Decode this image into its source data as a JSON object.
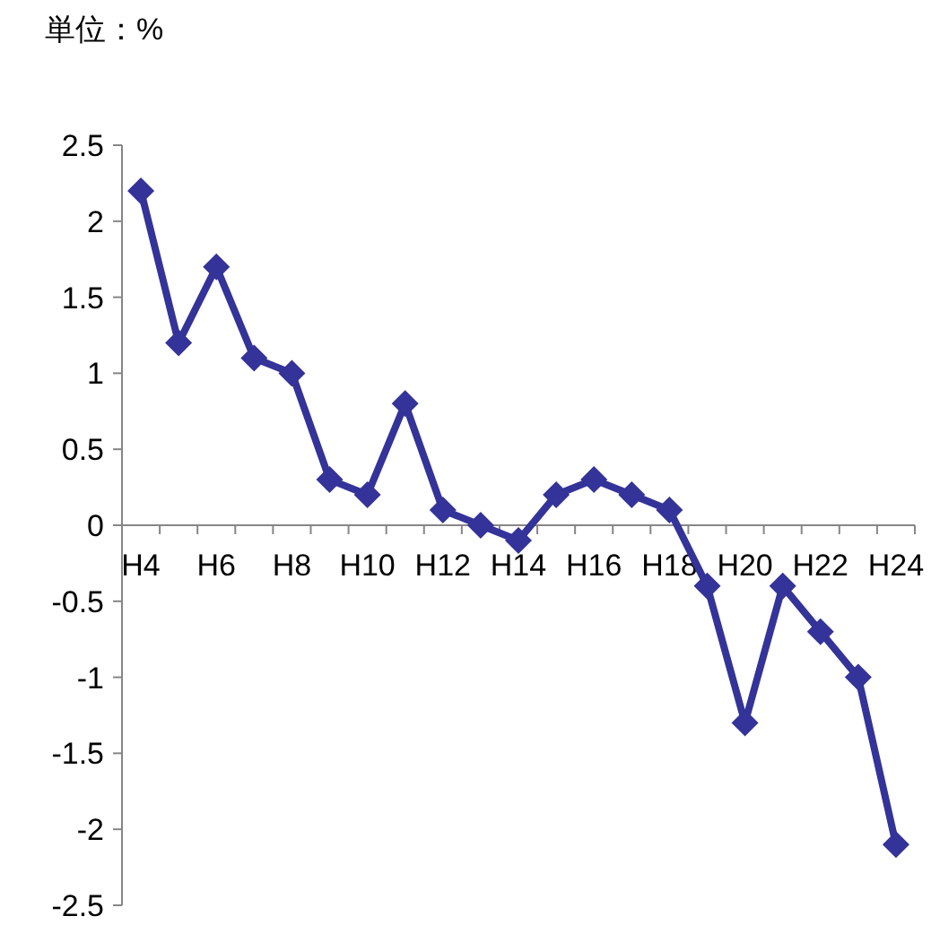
{
  "chart_data": {
    "type": "line",
    "ylabel": "単位：%",
    "categories": [
      "H4",
      null,
      "H6",
      null,
      "H8",
      null,
      "H10",
      null,
      "H12",
      null,
      "H14",
      null,
      "H16",
      null,
      "H18",
      null,
      "H20",
      null,
      "H22",
      null,
      "H24"
    ],
    "series": [
      {
        "color": "#333399",
        "values": [
          2.2,
          1.2,
          1.7,
          1.1,
          1.0,
          0.3,
          0.2,
          0.8,
          0.1,
          0.0,
          -0.1,
          0.2,
          0.3,
          0.2,
          0.1,
          -0.4,
          -1.3,
          -0.4,
          -0.7,
          -1.0,
          -2.1
        ]
      }
    ],
    "ylim": [
      -2.5,
      2.5
    ],
    "yticks": [
      2.5,
      2,
      1.5,
      1,
      0.5,
      0,
      -0.5,
      -1,
      -1.5,
      -2,
      -2.5
    ],
    "marker": "diamond"
  }
}
